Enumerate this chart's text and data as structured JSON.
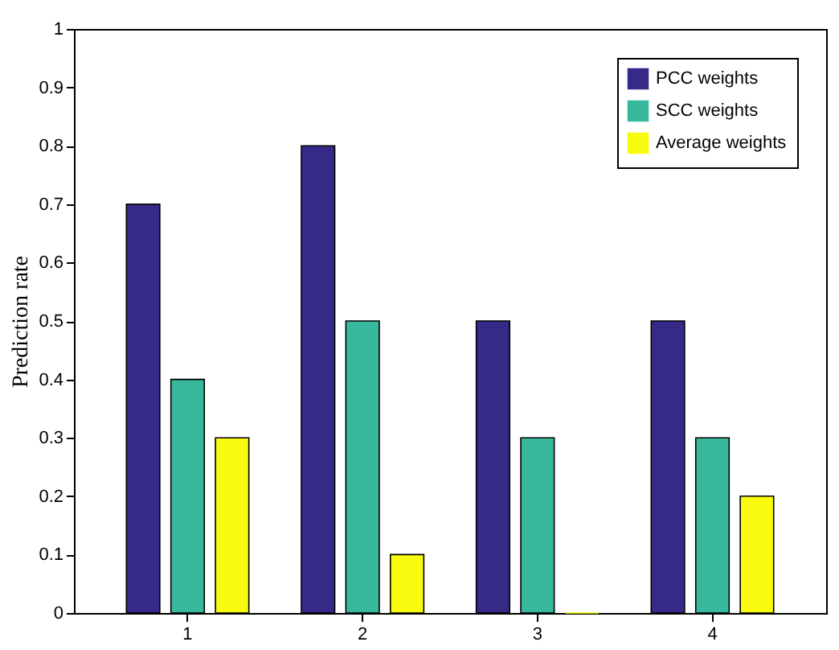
{
  "chart_data": {
    "type": "bar",
    "ylabel": "Prediction rate",
    "categories": [
      "1",
      "2",
      "3",
      "4"
    ],
    "series": [
      {
        "name": "PCC weights",
        "color": "#352a87",
        "values": [
          0.7,
          0.8,
          0.5,
          0.5
        ]
      },
      {
        "name": "SCC weights",
        "color": "#38b99e",
        "values": [
          0.4,
          0.5,
          0.3,
          0.3
        ]
      },
      {
        "name": "Average weights",
        "color": "#f9fb0e",
        "values": [
          0.3,
          0.1,
          0,
          0.2
        ]
      }
    ],
    "ylim": [
      0,
      1
    ],
    "yticks": [
      0,
      0.1,
      0.2,
      0.3,
      0.4,
      0.5,
      0.6,
      0.7,
      0.8,
      0.9,
      1
    ],
    "grid": false,
    "legend": "top right"
  }
}
